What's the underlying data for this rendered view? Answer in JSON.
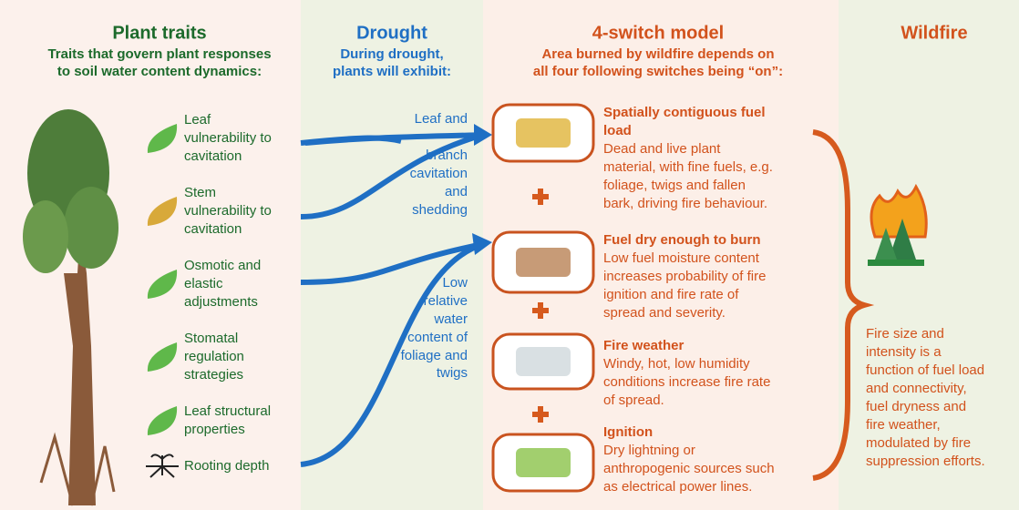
{
  "plant_traits": {
    "title": "Plant traits",
    "subtitle": [
      "Traits that govern plant responses",
      "to soil water content dynamics:"
    ],
    "traits": [
      {
        "lines": [
          "Leaf",
          "vulnerability to",
          "cavitation"
        ]
      },
      {
        "lines": [
          "Stem",
          "vulnerability to",
          "cavitation"
        ]
      },
      {
        "lines": [
          "Osmotic and",
          "elastic",
          "adjustments"
        ]
      },
      {
        "lines": [
          "Stomatal",
          "regulation",
          "strategies"
        ]
      },
      {
        "lines": [
          "Leaf structural",
          "properties"
        ]
      },
      {
        "lines": [
          "Rooting depth"
        ]
      }
    ]
  },
  "drought": {
    "title": "Drought",
    "subtitle": [
      "During drought,",
      "plants will exhibit:"
    ],
    "responses": [
      {
        "lines": [
          "Leaf and",
          "branch",
          "cavitation",
          "and",
          "shedding"
        ]
      },
      {
        "lines": [
          "Low",
          "relative",
          "water",
          "content of",
          "foliage and",
          "twigs"
        ]
      }
    ]
  },
  "model": {
    "title": "4-switch model",
    "subtitle": [
      "Area burned by wildfire depends on",
      "all four following switches being “on”:"
    ],
    "switches": [
      {
        "title": [
          "Spatially contiguous fuel",
          "load"
        ],
        "body": [
          "Dead and live plant",
          "material, with fine fuels, e.g.",
          "foliage, twigs and fallen",
          "bark, driving fire behaviour."
        ]
      },
      {
        "title": [
          "Fuel dry enough to burn"
        ],
        "body": [
          "Low fuel moisture content",
          "increases probability of fire",
          "ignition and fire rate of",
          "spread and severity."
        ]
      },
      {
        "title": [
          "Fire weather"
        ],
        "body": [
          "Windy, hot, low humidity",
          "conditions increase fire rate",
          "of spread."
        ]
      },
      {
        "title": [
          "Ignition"
        ],
        "body": [
          "Dry lightning or",
          "anthropogenic sources such",
          "as electrical power lines."
        ]
      }
    ]
  },
  "wildfire": {
    "title": "Wildfire",
    "text": [
      "Fire size and",
      "intensity is a",
      "function of fuel load",
      "and connectivity,",
      "fuel dryness and",
      "fire weather,",
      "modulated by fire",
      "suppression efforts."
    ]
  }
}
